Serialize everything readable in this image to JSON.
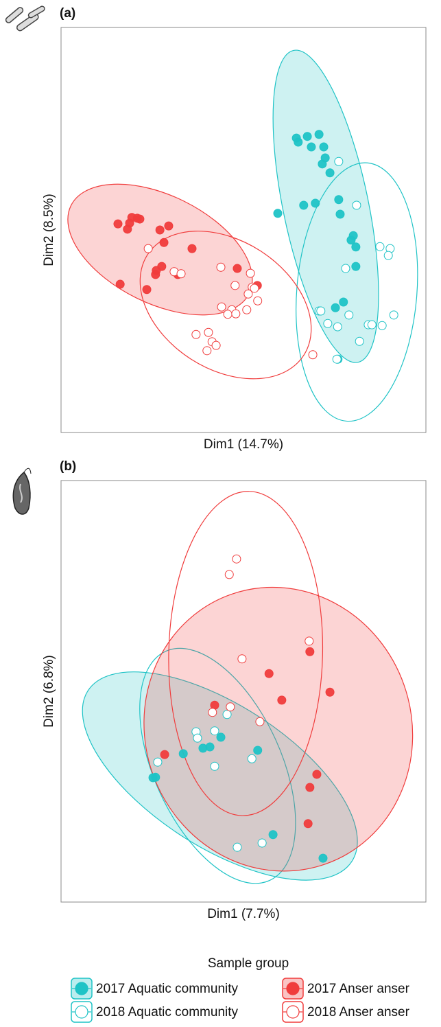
{
  "chart_data": [
    {
      "type": "scatter",
      "title": "(a)",
      "xlabel": "Dim1 (14.7%)",
      "ylabel": "Dim2 (8.5%)",
      "xlim": [
        0,
        100
      ],
      "ylim": [
        0,
        100
      ],
      "series": [
        {
          "color": "#1fc3c6",
          "filled": true,
          "x": [
            64.5,
            65.0,
            67.5,
            70.7,
            68.6,
            72.0,
            72.4,
            71.6,
            73.7,
            59.4,
            66.5,
            69.7,
            76.1,
            76.5,
            80.1,
            79.5,
            80.8,
            80.8,
            77.4,
            75.2,
            75.9
          ],
          "values": [
            72.7,
            71.7,
            73.1,
            73.6,
            70.5,
            70.5,
            67.8,
            66.3,
            64.1,
            54.1,
            56.1,
            56.6,
            57.5,
            53.9,
            48.6,
            47.5,
            45.8,
            41.0,
            32.2,
            30.8,
            18.1
          ]
        },
        {
          "color": "#1fc3c6",
          "filled": false,
          "x": [
            76.1,
            81.0,
            87.4,
            90.2,
            89.7,
            78.0,
            70.7,
            71.2,
            73.1,
            75.8,
            78.9,
            84.2,
            85.2,
            88.0,
            91.2,
            81.8,
            75.6
          ],
          "values": [
            66.9,
            56.1,
            45.9,
            45.4,
            43.7,
            40.5,
            30.0,
            30.0,
            26.9,
            26.1,
            29.0,
            26.6,
            26.6,
            26.4,
            29.0,
            22.5,
            18.1
          ]
        },
        {
          "color": "#f03c3c",
          "filled": true,
          "x": [
            19.4,
            20.9,
            18.8,
            21.6,
            15.6,
            18.2,
            27.1,
            29.5,
            28.2,
            35.9,
            27.6,
            26.1,
            25.9,
            32.0,
            16.2,
            23.5,
            48.3,
            53.8
          ],
          "values": [
            53.1,
            52.9,
            51.7,
            52.7,
            51.5,
            50.2,
            50.0,
            51.0,
            46.9,
            45.4,
            41.0,
            40.0,
            39.0,
            39.0,
            36.6,
            35.3,
            40.5,
            36.3
          ]
        },
        {
          "color": "#f03c3c",
          "filled": false,
          "x": [
            23.9,
            31.0,
            32.9,
            43.8,
            51.9,
            47.7,
            52.4,
            53.0,
            51.3,
            53.9,
            44.0,
            46.8,
            45.7,
            47.9,
            50.9,
            37.0,
            40.4,
            41.4,
            42.5,
            40.0,
            69.0
          ],
          "values": [
            45.4,
            39.7,
            39.2,
            40.8,
            39.3,
            36.3,
            35.9,
            35.6,
            34.2,
            32.5,
            31.0,
            30.3,
            29.2,
            29.3,
            30.3,
            24.2,
            24.7,
            22.4,
            21.5,
            20.2,
            19.2
          ]
        }
      ]
    },
    {
      "type": "scatter",
      "title": "(b)",
      "xlabel": "Dim1 (7.7%)",
      "ylabel": "Dim2 (6.8%)",
      "xlim": [
        0,
        100
      ],
      "ylim": [
        0,
        100
      ],
      "series": [
        {
          "color": "#1fc3c6",
          "filled": true,
          "x": [
            25.2,
            25.9,
            33.5,
            38.9,
            40.8,
            43.8,
            53.9,
            58.1,
            71.8
          ],
          "values": [
            29.5,
            29.6,
            35.2,
            36.5,
            36.8,
            39.1,
            36.0,
            16.0,
            10.4
          ]
        },
        {
          "color": "#1fc3c6",
          "filled": false,
          "x": [
            26.5,
            37.0,
            37.4,
            42.1,
            42.1,
            45.5,
            52.3,
            55.1,
            48.3
          ],
          "values": [
            33.2,
            40.4,
            38.9,
            40.6,
            32.2,
            44.5,
            34.0,
            14.0,
            13.0
          ]
        },
        {
          "color": "#f03c3c",
          "filled": true,
          "x": [
            28.4,
            42.1,
            57.0,
            60.5,
            68.2,
            73.7,
            70.1,
            68.2,
            67.7
          ],
          "values": [
            35.0,
            46.7,
            54.2,
            47.9,
            59.4,
            49.8,
            30.3,
            27.2,
            18.6
          ]
        },
        {
          "color": "#f03c3c",
          "filled": false,
          "x": [
            48.1,
            46.1,
            49.6,
            68.0,
            41.5,
            46.4,
            54.5
          ],
          "values": [
            81.4,
            77.7,
            57.7,
            61.9,
            45.0,
            46.3,
            42.8
          ]
        }
      ]
    }
  ],
  "legend": {
    "title": "Sample group",
    "items": [
      {
        "name": "2017 Aquatic community",
        "color": "#1fc3c6",
        "filled": true
      },
      {
        "name": "2018 Aquatic community",
        "color": "#1fc3c6",
        "filled": false
      },
      {
        "name": "2017 Anser anser",
        "color": "#f03c3c",
        "filled": true
      },
      {
        "name": "2018 Anser anser",
        "color": "#f03c3c",
        "filled": false
      }
    ]
  }
}
